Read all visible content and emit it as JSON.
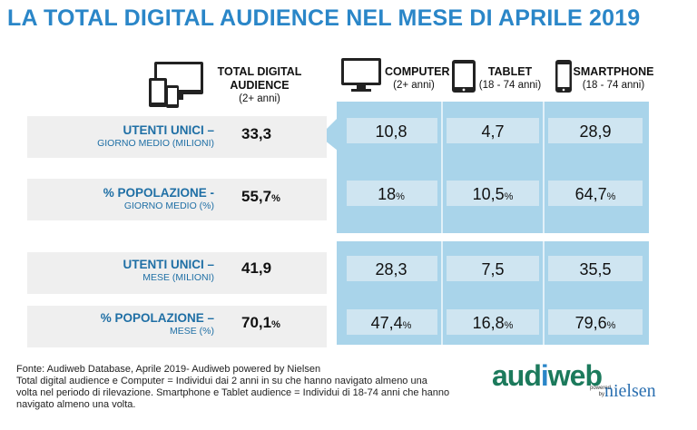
{
  "title": "LA TOTAL DIGITAL AUDIENCE NEL MESE DI APRILE 2019",
  "headers": {
    "total": {
      "line1": "TOTAL DIGITAL",
      "line2": "AUDIENCE",
      "line3": "(2+ anni)",
      "icon": "multi-device-icon"
    },
    "computer": {
      "line1": "COMPUTER",
      "line2": "(2+ anni)",
      "icon": "monitor-icon"
    },
    "tablet": {
      "line1": "TABLET",
      "line2": "(18 - 74 anni)",
      "icon": "tablet-icon"
    },
    "smartphone": {
      "line1": "SMARTPHONE",
      "line2": "(18 - 74 anni)",
      "icon": "smartphone-icon"
    }
  },
  "rows": [
    {
      "label1": "UTENTI UNICI –",
      "label2": "GIORNO MEDIO (MILIONI)",
      "total": "33,3",
      "total_pct": "",
      "computer": "10,8",
      "computer_pct": "",
      "tablet": "4,7",
      "tablet_pct": "",
      "smartphone": "28,9",
      "smartphone_pct": ""
    },
    {
      "label1": "% POPOLAZIONE -",
      "label2": "GIORNO MEDIO (%)",
      "total": "55,7",
      "total_pct": "%",
      "computer": "18",
      "computer_pct": "%",
      "tablet": "10,5",
      "tablet_pct": "%",
      "smartphone": "64,7",
      "smartphone_pct": "%"
    },
    {
      "label1": "UTENTI UNICI –",
      "label2": "MESE (MILIONI)",
      "total": "41,9",
      "total_pct": "",
      "computer": "28,3",
      "computer_pct": "",
      "tablet": "7,5",
      "tablet_pct": "",
      "smartphone": "35,5",
      "smartphone_pct": ""
    },
    {
      "label1": "% POPOLAZIONE –",
      "label2": "MESE (%)",
      "total": "70,1",
      "total_pct": "%",
      "computer": "47,4",
      "computer_pct": "%",
      "tablet": "16,8",
      "tablet_pct": "%",
      "smartphone": "79,6",
      "smartphone_pct": "%"
    }
  ],
  "footnote": {
    "line1": "Fonte: Audiweb Database, Aprile 2019- Audiweb powered by Nielsen",
    "line2": "Total digital audience e Computer = Individui dai 2 anni in su che hanno navigato almeno una volta nel periodo di rilevazione. Smartphone e Tablet audience = Individui di 18-74 anni che hanno navigato almeno una volta."
  },
  "logo": {
    "text_a": "aud",
    "text_b": "i",
    "text_c": "web",
    "powered": "powered by",
    "nielsen": "nielsen"
  },
  "colors": {
    "title": "#2a86c8",
    "panel": "#a9d4ea",
    "label": "#1f6fa5",
    "row_bg": "#efefef"
  }
}
